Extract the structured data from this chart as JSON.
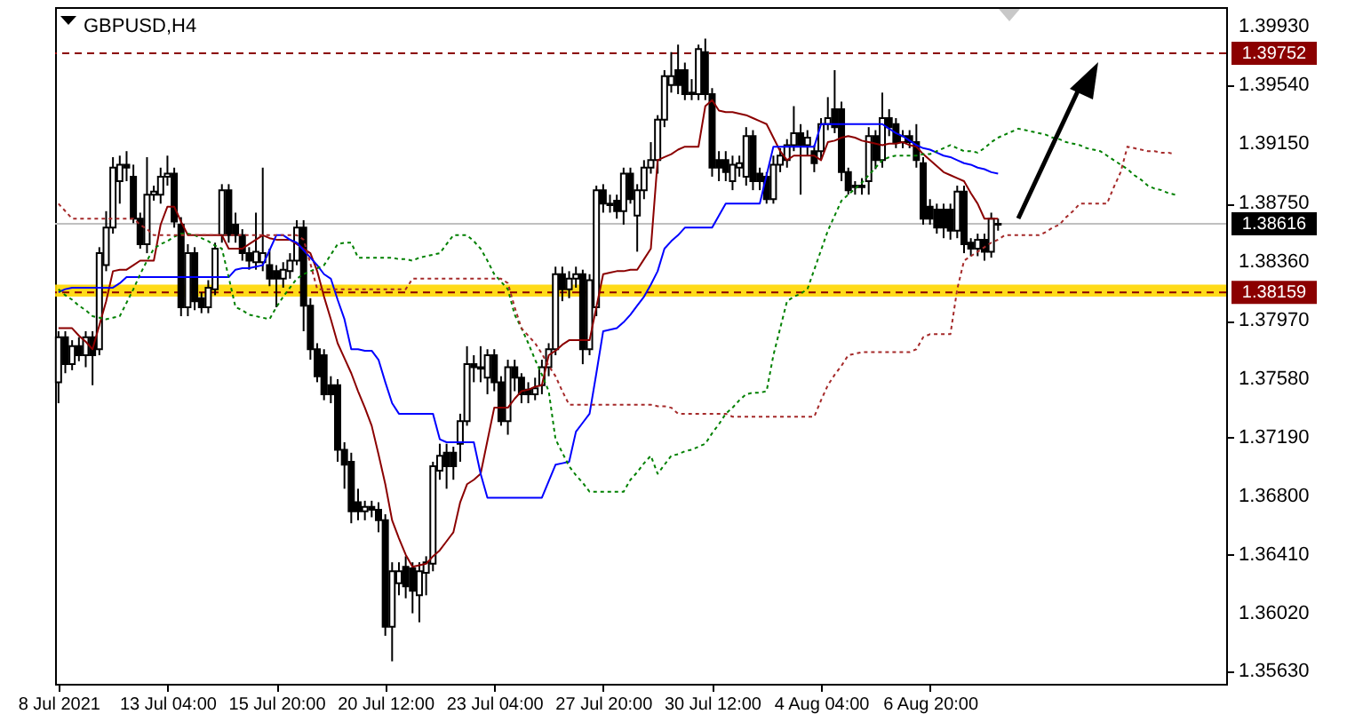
{
  "chart_data": {
    "type": "candlestick",
    "title": "GBPUSD,H4",
    "color": "#000000",
    "categories": [
      "8 Jul 2021",
      null,
      null,
      null,
      null,
      null,
      null,
      null,
      null,
      null,
      null,
      null,
      null,
      null,
      null,
      null,
      "13 Jul 04:00",
      null,
      null,
      null,
      null,
      null,
      null,
      null,
      null,
      null,
      null,
      null,
      null,
      null,
      null,
      null,
      "15 Jul 20:00",
      null,
      null,
      null,
      null,
      null,
      null,
      null,
      null,
      null,
      null,
      null,
      null,
      null,
      null,
      null,
      "20 Jul 12:00",
      null,
      null,
      null,
      null,
      null,
      null,
      null,
      null,
      null,
      null,
      null,
      null,
      null,
      null,
      null,
      "23 Jul 04:00",
      null,
      null,
      null,
      null,
      null,
      null,
      null,
      null,
      null,
      null,
      null,
      null,
      null,
      null,
      null,
      "27 Jul 20:00",
      null,
      null,
      null,
      null,
      null,
      null,
      null,
      null,
      null,
      null,
      null,
      null,
      null,
      null,
      null,
      "30 Jul 12:00",
      null,
      null,
      null,
      null,
      null,
      null,
      null,
      null,
      null,
      null,
      null,
      null,
      null,
      null,
      null,
      "4 Aug 04:00",
      null,
      null,
      null,
      null,
      null,
      null,
      null,
      null,
      null,
      null,
      null,
      null,
      null,
      null,
      null,
      "6 Aug 20:00",
      null,
      null,
      null,
      null,
      null,
      null,
      null,
      null,
      null,
      null,
      null,
      null,
      null,
      null,
      null,
      null,
      null,
      null,
      null,
      null,
      null,
      null,
      null,
      null,
      null,
      null,
      null,
      null,
      null,
      null,
      null,
      null,
      null,
      null,
      null,
      null,
      null,
      null,
      null,
      null,
      null,
      null,
      null
    ],
    "ohlc": [
      [
        1.3756,
        1.379,
        1.3742,
        1.3786
      ],
      [
        1.3786,
        1.379,
        1.3762,
        1.3768
      ],
      [
        1.3768,
        1.3784,
        1.3764,
        1.378
      ],
      [
        1.378,
        1.3786,
        1.377,
        1.3774
      ],
      [
        1.3774,
        1.379,
        1.3766,
        1.3786
      ],
      [
        1.3786,
        1.379,
        1.3754,
        1.3774
      ],
      [
        1.3778,
        1.3846,
        1.3774,
        1.3842
      ],
      [
        1.3834,
        1.387,
        1.383,
        1.3859
      ],
      [
        1.3859,
        1.3906,
        1.3855,
        1.3899
      ],
      [
        1.389,
        1.3907,
        1.3875,
        1.3901
      ],
      [
        1.3901,
        1.391,
        1.389,
        1.3899
      ],
      [
        1.3893,
        1.3901,
        1.3862,
        1.3865
      ],
      [
        1.3865,
        1.3869,
        1.3845,
        1.3848
      ],
      [
        1.3848,
        1.3906,
        1.3842,
        1.3881
      ],
      [
        1.3881,
        1.3887,
        1.3877,
        1.3883
      ],
      [
        1.3881,
        1.3899,
        1.3875,
        1.3893
      ],
      [
        1.3893,
        1.3907,
        1.3887,
        1.3895
      ],
      [
        1.3895,
        1.3899,
        1.3859,
        1.3863
      ],
      [
        1.3861,
        1.3866,
        1.38,
        1.3806
      ],
      [
        1.3806,
        1.3848,
        1.38,
        1.3842
      ],
      [
        1.3842,
        1.3846,
        1.3804,
        1.381
      ],
      [
        1.3812,
        1.3816,
        1.3802,
        1.3806
      ],
      [
        1.3806,
        1.3824,
        1.3802,
        1.3819
      ],
      [
        1.3818,
        1.3849,
        1.3814,
        1.3845
      ],
      [
        1.3854,
        1.3888,
        1.3849,
        1.3884
      ],
      [
        1.3884,
        1.3888,
        1.3849,
        1.3854
      ],
      [
        1.3861,
        1.3869,
        1.3849,
        1.3854
      ],
      [
        1.3854,
        1.3858,
        1.3837,
        1.3842
      ],
      [
        1.3842,
        1.3846,
        1.3831,
        1.3837
      ],
      [
        1.3836,
        1.3869,
        1.3831,
        1.3843
      ],
      [
        1.3836,
        1.3899,
        1.383,
        1.3842
      ],
      [
        1.3834,
        1.3845,
        1.382,
        1.3825
      ],
      [
        1.383,
        1.3834,
        1.3806,
        1.3825
      ],
      [
        1.3825,
        1.3836,
        1.3819,
        1.3831
      ],
      [
        1.383,
        1.3842,
        1.3825,
        1.3837
      ],
      [
        1.3837,
        1.3864,
        1.3834,
        1.3859
      ],
      [
        1.3859,
        1.3864,
        1.379,
        1.3807
      ],
      [
        1.3807,
        1.3812,
        1.3771,
        1.3778
      ],
      [
        1.3778,
        1.3782,
        1.3756,
        1.376
      ],
      [
        1.3774,
        1.3778,
        1.3744,
        1.3748
      ],
      [
        1.3754,
        1.376,
        1.3742,
        1.3748
      ],
      [
        1.3754,
        1.3758,
        1.3703,
        1.3711
      ],
      [
        1.3711,
        1.3716,
        1.3685,
        1.3701
      ],
      [
        1.3703,
        1.3709,
        1.3662,
        1.367
      ],
      [
        1.3676,
        1.3685,
        1.3664,
        1.367
      ],
      [
        1.367,
        1.3677,
        1.3664,
        1.3673
      ],
      [
        1.3673,
        1.3677,
        1.3666,
        1.3671
      ],
      [
        1.3671,
        1.3676,
        1.3656,
        1.3664
      ],
      [
        1.3664,
        1.3668,
        1.3587,
        1.3593
      ],
      [
        1.3593,
        1.3636,
        1.357,
        1.363
      ],
      [
        1.3622,
        1.3636,
        1.3614,
        1.363
      ],
      [
        1.3633,
        1.364,
        1.3612,
        1.362
      ],
      [
        1.3632,
        1.3636,
        1.3602,
        1.3617
      ],
      [
        1.3614,
        1.3636,
        1.3596,
        1.363
      ],
      [
        1.3629,
        1.364,
        1.3614,
        1.3636
      ],
      [
        1.3635,
        1.3703,
        1.363,
        1.37
      ],
      [
        1.3697,
        1.3715,
        1.3691,
        1.3707
      ],
      [
        1.3709,
        1.3715,
        1.3685,
        1.37
      ],
      [
        1.3709,
        1.3713,
        1.3691,
        1.37
      ],
      [
        1.3715,
        1.3735,
        1.3703,
        1.373
      ],
      [
        1.373,
        1.378,
        1.3727,
        1.3768
      ],
      [
        1.3768,
        1.3774,
        1.3756,
        1.3766
      ],
      [
        1.3766,
        1.378,
        1.3756,
        1.3765
      ],
      [
        1.3759,
        1.3778,
        1.3748,
        1.3774
      ],
      [
        1.3774,
        1.3778,
        1.375,
        1.3756
      ],
      [
        1.3756,
        1.376,
        1.3727,
        1.373
      ],
      [
        1.373,
        1.3771,
        1.3721,
        1.3766
      ],
      [
        1.3766,
        1.3771,
        1.375,
        1.3759
      ],
      [
        1.3759,
        1.3762,
        1.3742,
        1.3748
      ],
      [
        1.3751,
        1.3756,
        1.3742,
        1.3748
      ],
      [
        1.3748,
        1.3759,
        1.3744,
        1.3752
      ],
      [
        1.3754,
        1.3771,
        1.3748,
        1.3766
      ],
      [
        1.3766,
        1.3782,
        1.376,
        1.3778
      ],
      [
        1.3778,
        1.3833,
        1.3774,
        1.3828
      ],
      [
        1.3828,
        1.3833,
        1.381,
        1.3818
      ],
      [
        1.3818,
        1.383,
        1.3812,
        1.3825
      ],
      [
        1.3825,
        1.3833,
        1.3819,
        1.3828
      ],
      [
        1.3828,
        1.3831,
        1.3768,
        1.3778
      ],
      [
        1.3778,
        1.3828,
        1.3774,
        1.3824
      ],
      [
        1.3806,
        1.3887,
        1.38,
        1.3884
      ],
      [
        1.3884,
        1.3888,
        1.3869,
        1.3875
      ],
      [
        1.3875,
        1.3881,
        1.3869,
        1.3874
      ],
      [
        1.3877,
        1.3881,
        1.3865,
        1.387
      ],
      [
        1.387,
        1.3899,
        1.3861,
        1.3895
      ],
      [
        1.3895,
        1.3899,
        1.3875,
        1.3878
      ],
      [
        1.3867,
        1.3888,
        1.3843,
        1.3884
      ],
      [
        1.3884,
        1.3904,
        1.3878,
        1.3899
      ],
      [
        1.3899,
        1.3916,
        1.3895,
        1.3904
      ],
      [
        1.3904,
        1.3934,
        1.3895,
        1.3931
      ],
      [
        1.3931,
        1.3964,
        1.3926,
        1.396
      ],
      [
        1.3954,
        1.3976,
        1.3949,
        1.396
      ],
      [
        1.3964,
        1.3981,
        1.3948,
        1.3954
      ],
      [
        1.3964,
        1.3969,
        1.3944,
        1.3948
      ],
      [
        1.3949,
        1.3958,
        1.3944,
        1.3948
      ],
      [
        1.3948,
        1.3981,
        1.3944,
        1.3978
      ],
      [
        1.3976,
        1.3985,
        1.3944,
        1.3948
      ],
      [
        1.3948,
        1.3952,
        1.3893,
        1.3899
      ],
      [
        1.3904,
        1.391,
        1.389,
        1.3899
      ],
      [
        1.3904,
        1.391,
        1.389,
        1.3896
      ],
      [
        1.389,
        1.3907,
        1.3884,
        1.3901
      ],
      [
        1.3899,
        1.3907,
        1.3893,
        1.3902
      ],
      [
        1.3893,
        1.3926,
        1.3887,
        1.392
      ],
      [
        1.392,
        1.3924,
        1.3884,
        1.389
      ],
      [
        1.3895,
        1.3899,
        1.3884,
        1.389
      ],
      [
        1.3893,
        1.3896,
        1.3875,
        1.3878
      ],
      [
        1.3878,
        1.3907,
        1.3875,
        1.3901
      ],
      [
        1.3901,
        1.3912,
        1.3896,
        1.3907
      ],
      [
        1.3904,
        1.3918,
        1.3899,
        1.3914
      ],
      [
        1.3914,
        1.394,
        1.391,
        1.3922
      ],
      [
        1.3922,
        1.3928,
        1.3881,
        1.3914
      ],
      [
        1.3914,
        1.3924,
        1.3907,
        1.3919
      ],
      [
        1.391,
        1.3914,
        1.3896,
        1.3902
      ],
      [
        1.391,
        1.3932,
        1.3904,
        1.3928
      ],
      [
        1.3928,
        1.3946,
        1.3924,
        1.3932
      ],
      [
        1.3938,
        1.3964,
        1.3922,
        1.3926
      ],
      [
        1.3938,
        1.3943,
        1.389,
        1.3896
      ],
      [
        1.3896,
        1.3899,
        1.3881,
        1.3884
      ],
      [
        1.3887,
        1.389,
        1.3881,
        1.3886
      ],
      [
        1.3886,
        1.3892,
        1.3881,
        1.3887
      ],
      [
        1.389,
        1.3926,
        1.3881,
        1.392
      ],
      [
        1.392,
        1.3924,
        1.3898,
        1.3904
      ],
      [
        1.3904,
        1.3949,
        1.3899,
        1.3932
      ],
      [
        1.3932,
        1.3938,
        1.392,
        1.3926
      ],
      [
        1.3928,
        1.3932,
        1.3912,
        1.3916
      ],
      [
        1.3916,
        1.3924,
        1.3912,
        1.392
      ],
      [
        1.392,
        1.3924,
        1.3912,
        1.3916
      ],
      [
        1.3916,
        1.3928,
        1.3899,
        1.3904
      ],
      [
        1.3902,
        1.3906,
        1.3861,
        1.3865
      ],
      [
        1.3873,
        1.3878,
        1.3861,
        1.3865
      ],
      [
        1.3871,
        1.3875,
        1.3855,
        1.3859
      ],
      [
        1.3871,
        1.3875,
        1.3852,
        1.3859
      ],
      [
        1.3871,
        1.3875,
        1.3851,
        1.3857
      ],
      [
        1.3857,
        1.3887,
        1.3852,
        1.3883
      ],
      [
        1.3883,
        1.3887,
        1.3842,
        1.3848
      ],
      [
        1.3849,
        1.3852,
        1.384,
        1.3845
      ],
      [
        1.3845,
        1.3855,
        1.384,
        1.3851
      ],
      [
        1.3851,
        1.3855,
        1.3837,
        1.3843
      ],
      [
        1.3843,
        1.3869,
        1.3839,
        1.3865
      ],
      [
        1.3861,
        1.3865,
        1.3857,
        1.38616
      ],
      null,
      null,
      null,
      null,
      null,
      null,
      null,
      null,
      null,
      null,
      null,
      null,
      null,
      null,
      null,
      null,
      null,
      null,
      null,
      null,
      null,
      null,
      null,
      null,
      null,
      null,
      null,
      null,
      null,
      null,
      null,
      null,
      null
    ],
    "series": [
      {
        "type": "line",
        "color": "#8b0000",
        "values": [
          1.3792,
          1.3792,
          1.3792,
          1.3787,
          1.3783,
          1.3778,
          1.3794,
          1.381,
          1.383,
          1.3831,
          1.3831,
          1.3834,
          1.3837,
          1.3837,
          1.3837,
          1.3861,
          1.3873,
          1.3873,
          1.3863,
          1.3854,
          1.3854,
          1.3854,
          1.3854,
          1.3854,
          1.3854,
          1.3845,
          1.3845,
          1.3845,
          1.3848,
          1.3851,
          1.3854,
          1.3852,
          1.3851,
          1.3851,
          1.3851,
          1.3848,
          1.3845,
          1.3842,
          1.383,
          1.3813,
          1.3798,
          1.3782,
          1.3772,
          1.3762,
          1.375,
          1.3739,
          1.3727,
          1.3708,
          1.3688,
          1.3664,
          1.3652,
          1.3641,
          1.3633,
          1.3634,
          1.3635,
          1.364,
          1.3644,
          1.365,
          1.3656,
          1.3676,
          1.3688,
          1.3691,
          1.3695,
          1.3717,
          1.3739,
          1.3739,
          1.3739,
          1.3745,
          1.375,
          1.3751,
          1.3753,
          1.3754,
          1.3774,
          1.3777,
          1.3781,
          1.3784,
          1.3784,
          1.3784,
          1.3784,
          1.3806,
          1.3828,
          1.3829,
          1.383,
          1.383,
          1.3831,
          1.3831,
          1.3838,
          1.3845,
          1.3904,
          1.3906,
          1.3908,
          1.3911,
          1.3913,
          1.3913,
          1.3913,
          1.394,
          1.3944,
          1.3937,
          1.3936,
          1.3936,
          1.3935,
          1.3934,
          1.3932,
          1.393,
          1.3928,
          1.3919,
          1.391,
          1.3904,
          1.3907,
          1.3907,
          1.3907,
          1.3907,
          1.3904,
          1.3916,
          1.3917,
          1.3919,
          1.392,
          1.3919,
          1.3917,
          1.3916,
          1.3915,
          1.3914,
          1.3915,
          1.3915,
          1.3916,
          1.3914,
          1.3913,
          1.3908,
          1.3904,
          1.39,
          1.3896,
          1.3894,
          1.3892,
          1.389,
          1.3882,
          1.3875,
          1.3865,
          1.3865,
          1.3865,
          null,
          null,
          null,
          null,
          null,
          null,
          null,
          null,
          null,
          null,
          null,
          null,
          null,
          null,
          null,
          null,
          null,
          null,
          null,
          null,
          null,
          null,
          null,
          null,
          null,
          null,
          null,
          null,
          null,
          null,
          null,
          null,
          null
        ]
      },
      {
        "type": "line",
        "color": "#0000ff",
        "values": [
          1.3816,
          1.3818,
          1.3819,
          1.3819,
          1.3819,
          1.3819,
          1.3819,
          1.3819,
          1.3819,
          1.3822,
          1.3826,
          1.3826,
          1.3826,
          1.3826,
          1.3826,
          1.3826,
          1.3826,
          1.3826,
          1.3826,
          1.3826,
          1.3826,
          1.3826,
          1.3826,
          1.3826,
          1.3826,
          1.3826,
          1.3831,
          1.3832,
          1.3832,
          1.3833,
          1.3834,
          1.3844,
          1.3854,
          1.3854,
          1.3851,
          1.3849,
          1.3844,
          1.3839,
          1.3834,
          1.3828,
          1.3825,
          1.3811,
          1.3798,
          1.3778,
          1.3778,
          1.3777,
          1.3777,
          1.3771,
          1.3756,
          1.3742,
          1.3735,
          1.3735,
          1.3735,
          1.3735,
          1.3735,
          1.3735,
          1.3718,
          1.3716,
          1.3716,
          1.3716,
          1.3716,
          1.3716,
          1.3695,
          1.3679,
          1.3679,
          1.3679,
          1.3679,
          1.3679,
          1.3679,
          1.3679,
          1.3679,
          1.3679,
          1.369,
          1.3701,
          1.3702,
          1.3703,
          1.3723,
          1.3729,
          1.3735,
          1.3762,
          1.379,
          1.3791,
          1.3792,
          1.3796,
          1.3801,
          1.3807,
          1.3813,
          1.3821,
          1.383,
          1.3845,
          1.385,
          1.3854,
          1.3859,
          1.3859,
          1.3859,
          1.3859,
          1.3859,
          1.3867,
          1.3875,
          1.3875,
          1.3875,
          1.3875,
          1.3875,
          1.3875,
          1.3894,
          1.3913,
          1.3913,
          1.3913,
          1.3913,
          1.3913,
          1.3913,
          1.3913,
          1.3928,
          1.3928,
          1.3928,
          1.3928,
          1.3928,
          1.3928,
          1.3928,
          1.3928,
          1.3928,
          1.3928,
          1.3925,
          1.3922,
          1.392,
          1.3917,
          1.3914,
          1.3912,
          1.3911,
          1.3909,
          1.3907,
          1.3906,
          1.3904,
          1.3902,
          1.3901,
          1.3899,
          1.3898,
          1.3896,
          1.3895,
          null,
          null,
          null,
          null,
          null,
          null,
          null,
          null,
          null,
          null,
          null,
          null,
          null,
          null,
          null,
          null,
          null,
          null,
          null,
          null,
          null,
          null,
          null,
          null,
          null,
          null,
          null,
          null,
          null,
          null,
          null,
          null,
          null
        ]
      },
      {
        "type": "line",
        "color": "#008000",
        "line_style": "dotted",
        "values": [
          1.3818,
          1.3814,
          1.3811,
          1.3807,
          1.3804,
          1.38,
          1.3799,
          1.3798,
          1.3799,
          1.38,
          1.3809,
          1.3818,
          1.3828,
          1.3837,
          1.3845,
          1.3848,
          1.385,
          1.3853,
          1.3855,
          1.3855,
          1.3854,
          1.3852,
          1.385,
          1.3847,
          1.3845,
          1.3826,
          1.3806,
          1.3804,
          1.3801,
          1.38,
          1.3799,
          1.3798,
          1.3806,
          1.3813,
          1.3819,
          1.3825,
          1.3828,
          1.383,
          1.3832,
          1.3834,
          1.3841,
          1.3848,
          1.3849,
          1.3849,
          1.3839,
          1.3839,
          1.3839,
          1.3839,
          1.3839,
          1.3839,
          1.3838,
          1.3838,
          1.3837,
          1.3839,
          1.384,
          1.3841,
          1.3842,
          1.3848,
          1.3854,
          1.3854,
          1.3854,
          1.385,
          1.3845,
          1.3837,
          1.3828,
          1.3823,
          1.3818,
          1.3801,
          1.3792,
          1.3782,
          1.3771,
          1.3761,
          1.375,
          1.3718,
          1.3709,
          1.37,
          1.3694,
          1.3689,
          1.3683,
          1.3683,
          1.3683,
          1.3683,
          1.3683,
          1.3683,
          1.3691,
          1.3696,
          1.3702,
          1.3707,
          1.3695,
          1.3701,
          1.3707,
          1.3708,
          1.371,
          1.3711,
          1.3713,
          1.3715,
          1.3722,
          1.3728,
          1.3735,
          1.3739,
          1.3744,
          1.3748,
          1.3749,
          1.3749,
          1.375,
          1.3774,
          1.3792,
          1.381,
          1.3813,
          1.3815,
          1.3818,
          1.3831,
          1.3844,
          1.3857,
          1.3867,
          1.3877,
          1.3881,
          1.3885,
          1.3889,
          1.3894,
          1.3899,
          1.3904,
          1.3906,
          1.3907,
          1.3907,
          1.3907,
          1.3907,
          1.3908,
          1.3908,
          1.391,
          1.3912,
          1.3914,
          1.3912,
          1.391,
          1.391,
          1.3909,
          1.3912,
          1.3916,
          1.3919,
          1.3921,
          1.3923,
          1.3925,
          1.3924,
          1.3923,
          1.3922,
          1.3921,
          1.3919,
          1.3918,
          1.3916,
          1.3915,
          1.3914,
          1.3912,
          1.3911,
          1.391,
          1.3907,
          1.3904,
          1.3901,
          1.3898,
          1.3894,
          1.3891,
          1.3887,
          1.3885,
          1.3884,
          1.3882,
          1.3881,
          null,
          null,
          null,
          null,
          null,
          null,
          null
        ]
      },
      {
        "type": "line",
        "color": "#a52a2a",
        "line_style": "dotted",
        "values": [
          1.3875,
          1.387,
          1.3865,
          1.3865,
          1.3865,
          1.3865,
          1.3865,
          1.3865,
          1.3865,
          1.3865,
          1.3865,
          1.3865,
          1.3861,
          1.3858,
          1.3854,
          1.3854,
          1.3854,
          1.3854,
          1.3854,
          1.3854,
          1.3854,
          1.3854,
          1.3854,
          1.3854,
          1.3854,
          1.3854,
          1.3854,
          1.3854,
          1.3854,
          1.3854,
          1.3854,
          1.3854,
          1.3854,
          1.3854,
          1.3854,
          1.3854,
          1.3851,
          1.3835,
          1.3818,
          1.3818,
          1.3818,
          1.3818,
          1.3818,
          1.3818,
          1.3818,
          1.3818,
          1.3818,
          1.3818,
          1.3818,
          1.3818,
          1.3818,
          1.3818,
          1.3825,
          1.3825,
          1.3825,
          1.3825,
          1.3825,
          1.3825,
          1.3825,
          1.3825,
          1.3825,
          1.3825,
          1.3825,
          1.3825,
          1.3825,
          1.3825,
          1.3822,
          1.3806,
          1.3792,
          1.3787,
          1.3782,
          1.3775,
          1.3767,
          1.376,
          1.375,
          1.3741,
          1.3741,
          1.3741,
          1.3741,
          1.3741,
          1.3741,
          1.3741,
          1.3741,
          1.3741,
          1.3741,
          1.3741,
          1.3741,
          1.3741,
          1.374,
          1.374,
          1.3739,
          1.3735,
          1.3735,
          1.3735,
          1.3735,
          1.3735,
          1.3735,
          1.3735,
          1.3735,
          1.3733,
          1.3733,
          1.3733,
          1.3733,
          1.3733,
          1.3733,
          1.3733,
          1.3733,
          1.3733,
          1.3733,
          1.3733,
          1.3733,
          1.3733,
          1.3744,
          1.3754,
          1.3761,
          1.3767,
          1.3774,
          1.3775,
          1.3776,
          1.3776,
          1.3776,
          1.3776,
          1.3776,
          1.3776,
          1.3776,
          1.3776,
          1.3778,
          1.3786,
          1.3788,
          1.3788,
          1.3788,
          1.3788,
          1.3818,
          1.3837,
          1.384,
          1.3843,
          1.3846,
          1.3849,
          1.3851,
          1.3854,
          1.3854,
          1.3854,
          1.3854,
          1.3854,
          1.3854,
          1.3856,
          1.3859,
          1.3861,
          1.3866,
          1.387,
          1.3875,
          1.3875,
          1.3875,
          1.3875,
          1.3875,
          1.3886,
          1.3896,
          1.3913,
          1.3912,
          1.3911,
          1.391,
          1.391,
          1.3909,
          1.3909,
          1.3908,
          null,
          null,
          null,
          null,
          null,
          null,
          null
        ]
      }
    ],
    "ylim": [
      1.3555,
      1.4006
    ],
    "yticks": [
      {
        "value": 1.3563,
        "label": "1.35630"
      },
      {
        "value": 1.3602,
        "label": "1.36020"
      },
      {
        "value": 1.3641,
        "label": "1.36410"
      },
      {
        "value": 1.368,
        "label": "1.36800"
      },
      {
        "value": 1.3719,
        "label": "1.37190"
      },
      {
        "value": 1.3758,
        "label": "1.37580"
      },
      {
        "value": 1.3797,
        "label": "1.37970"
      },
      {
        "value": 1.3836,
        "label": "1.38360"
      },
      {
        "value": 1.3875,
        "label": "1.38750"
      },
      {
        "value": 1.3915,
        "label": "1.39150"
      },
      {
        "value": 1.3954,
        "label": "1.39540"
      },
      {
        "value": 1.3993,
        "label": "1.39930"
      }
    ],
    "bands": [
      {
        "axis": "y",
        "from": 1.3813,
        "to": 1.3821,
        "color": "#ffd700"
      }
    ],
    "ref_lines": [
      {
        "axis": "y",
        "value": 1.39752,
        "label": "1.39752",
        "color": "#8b0000",
        "line_style": "dashed"
      },
      {
        "axis": "y",
        "value": 1.38159,
        "label": "1.38159",
        "color": "#8b0000",
        "line_style": "dashed"
      },
      {
        "axis": "y",
        "value": 1.38616,
        "label": "1.38616",
        "color": "#c0c0c0",
        "line_style": "solid"
      }
    ]
  }
}
